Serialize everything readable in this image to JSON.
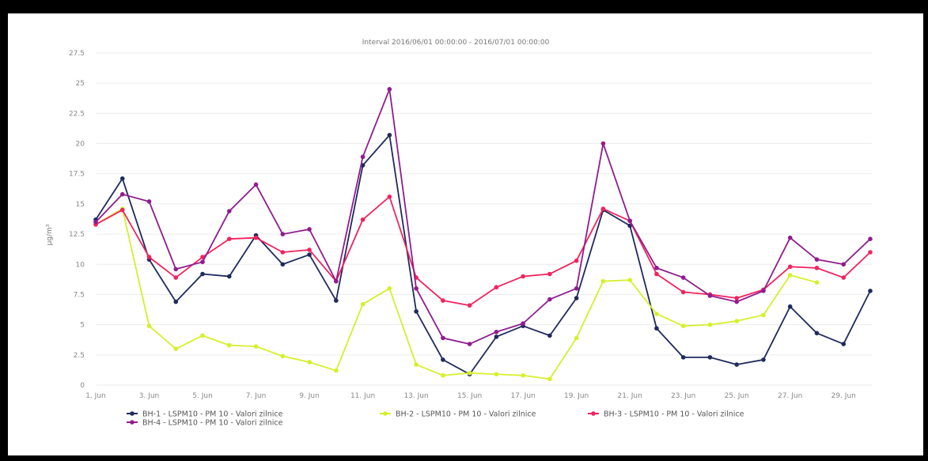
{
  "chart_data": {
    "type": "line",
    "title": "Interval 2016/06/01 00:00:00 - 2016/07/01 00:00:00",
    "ylabel": "µg/m³",
    "xlabel": "",
    "ylim": [
      0,
      27.5
    ],
    "yticks": [
      "0",
      "2.5",
      "5",
      "7.5",
      "10",
      "12.5",
      "15",
      "17.5",
      "20",
      "22.5",
      "25",
      "27.5"
    ],
    "xticks": [
      {
        "day": 1,
        "label": "1. Jun"
      },
      {
        "day": 3,
        "label": "3. Jun"
      },
      {
        "day": 5,
        "label": "5. Jun"
      },
      {
        "day": 7,
        "label": "7. Jun"
      },
      {
        "day": 9,
        "label": "9. Jun"
      },
      {
        "day": 11,
        "label": "11. Jun"
      },
      {
        "day": 13,
        "label": "13. Jun"
      },
      {
        "day": 15,
        "label": "15. Jun"
      },
      {
        "day": 17,
        "label": "17. Jun"
      },
      {
        "day": 19,
        "label": "19. Jun"
      },
      {
        "day": 21,
        "label": "21. Jun"
      },
      {
        "day": 23,
        "label": "23. Jun"
      },
      {
        "day": 25,
        "label": "25. Jun"
      },
      {
        "day": 27,
        "label": "27. Jun"
      },
      {
        "day": 29,
        "label": "29. Jun"
      }
    ],
    "grid": true,
    "legend_position": "bottom-left",
    "series": [
      {
        "name": "BH-1 - LSPM10 - PM 10 - Valori zilnice",
        "color": "#1f2a5e",
        "x": [
          1,
          2,
          3,
          4,
          5,
          6,
          7,
          8,
          9,
          10,
          11,
          12,
          13,
          14,
          15,
          16,
          17,
          18,
          19,
          20,
          21,
          22,
          23,
          24,
          25,
          26,
          27,
          28,
          29,
          30
        ],
        "values": [
          13.7,
          17.1,
          10.4,
          6.9,
          9.2,
          9.0,
          12.4,
          10.0,
          10.8,
          7.0,
          18.2,
          20.7,
          6.1,
          2.1,
          0.9,
          4.0,
          4.9,
          4.1,
          7.2,
          14.5,
          13.2,
          4.7,
          2.3,
          2.3,
          1.7,
          2.1,
          6.5,
          4.3,
          3.4,
          7.8
        ]
      },
      {
        "name": "BH-2 - LSPM10 - PM 10 - Valori zilnice",
        "color": "#d6ef2c",
        "x": [
          1,
          2,
          3,
          4,
          5,
          6,
          7,
          8,
          9,
          10,
          11,
          12,
          13,
          14,
          15,
          16,
          17,
          18,
          19,
          20,
          21,
          22,
          23,
          24,
          25,
          26,
          27,
          28
        ],
        "values": [
          13.3,
          14.6,
          4.9,
          3.0,
          4.1,
          3.3,
          3.2,
          2.4,
          1.9,
          1.2,
          6.7,
          8.0,
          1.7,
          0.8,
          1.0,
          0.9,
          0.8,
          0.5,
          3.9,
          8.6,
          8.7,
          5.9,
          4.9,
          5.0,
          5.3,
          5.8,
          9.1,
          8.5
        ]
      },
      {
        "name": "BH-3 - LSPM10 - PM 10 - Valori zilnice",
        "color": "#f0245e",
        "x": [
          1,
          2,
          3,
          4,
          5,
          6,
          7,
          8,
          9,
          10,
          11,
          12,
          13,
          14,
          15,
          16,
          17,
          18,
          19,
          20,
          21,
          22,
          23,
          24,
          25,
          26,
          27,
          28,
          29,
          30
        ],
        "values": [
          13.3,
          14.5,
          10.6,
          8.9,
          10.6,
          12.1,
          12.2,
          11.0,
          11.2,
          8.6,
          13.7,
          15.6,
          8.9,
          7.0,
          6.6,
          8.1,
          9.0,
          9.2,
          10.3,
          14.6,
          13.6,
          9.2,
          7.7,
          7.5,
          7.2,
          7.9,
          9.8,
          9.7,
          8.9,
          11.0
        ]
      },
      {
        "name": "BH-4 - LSPM10 - PM 10 - Valori zilnice",
        "color": "#8f1d8f",
        "x": [
          1,
          2,
          3,
          4,
          5,
          6,
          7,
          8,
          9,
          10,
          11,
          12,
          13,
          14,
          15,
          16,
          17,
          18,
          19,
          20,
          21,
          22,
          23,
          24,
          25,
          26,
          27,
          28,
          29,
          30
        ],
        "values": [
          13.5,
          15.8,
          15.2,
          9.6,
          10.2,
          14.4,
          16.6,
          12.5,
          12.9,
          8.6,
          18.9,
          24.5,
          8.0,
          3.9,
          3.4,
          4.4,
          5.1,
          7.1,
          8.0,
          20.0,
          13.6,
          9.7,
          8.9,
          7.4,
          6.9,
          7.8,
          12.2,
          10.4,
          10.0,
          12.1
        ]
      }
    ]
  }
}
